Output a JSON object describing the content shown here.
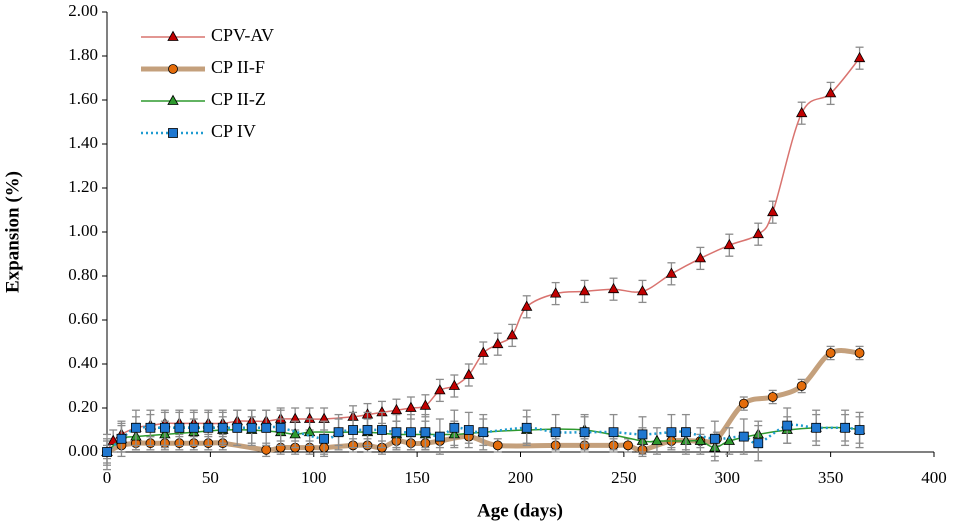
{
  "chart_data": {
    "type": "line",
    "xlabel": "Age (days)",
    "ylabel": "Expansion (%)",
    "xlim": [
      0,
      400
    ],
    "xticks": [
      0,
      50,
      100,
      150,
      200,
      250,
      300,
      350,
      400
    ],
    "ylim": [
      0,
      2
    ],
    "yticks": [
      {
        "value": 0,
        "label": "0.00"
      },
      {
        "value": 0.2,
        "label": "0.20"
      },
      {
        "value": 0.4,
        "label": "0.40"
      },
      {
        "value": 0.6,
        "label": "0.60"
      },
      {
        "value": 0.8,
        "label": "0.80"
      },
      {
        "value": 1,
        "label": "1.00"
      },
      {
        "value": 1.2,
        "label": "1.20"
      },
      {
        "value": 1.4,
        "label": "1.40"
      },
      {
        "value": 1.6,
        "label": "1.60"
      },
      {
        "value": 1.8,
        "label": "1.80"
      },
      {
        "value": 2,
        "label": "2.00"
      }
    ],
    "legend": "upper left",
    "series": [
      {
        "name": "CPV-AV",
        "color": "#c00000",
        "line_color": "#d9736f",
        "line_width": 1.5,
        "dash": "none",
        "marker": "triangle",
        "error": 0.05,
        "x": [
          0,
          3,
          7,
          14,
          21,
          28,
          35,
          42,
          49,
          56,
          63,
          70,
          77,
          84,
          91,
          98,
          105,
          119,
          126,
          133,
          140,
          147,
          154,
          161,
          168,
          175,
          182,
          189,
          196,
          203,
          217,
          231,
          245,
          259,
          273,
          287,
          301,
          315,
          322,
          336,
          350,
          364
        ],
        "values": [
          0,
          0.05,
          0.08,
          0.11,
          0.12,
          0.13,
          0.13,
          0.13,
          0.13,
          0.13,
          0.14,
          0.14,
          0.14,
          0.15,
          0.15,
          0.15,
          0.15,
          0.16,
          0.17,
          0.18,
          0.19,
          0.2,
          0.21,
          0.28,
          0.3,
          0.35,
          0.45,
          0.49,
          0.53,
          0.66,
          0.72,
          0.73,
          0.74,
          0.73,
          0.81,
          0.88,
          0.94,
          0.99,
          1.09,
          1.54,
          1.63,
          1.79
        ]
      },
      {
        "name": "CP II-F",
        "color": "#e46c0a",
        "line_color": "#c4a07c",
        "line_width": 5,
        "dash": "none",
        "marker": "circle",
        "error": 0.03,
        "x": [
          0,
          7,
          14,
          21,
          28,
          35,
          42,
          49,
          56,
          77,
          84,
          91,
          98,
          105,
          119,
          126,
          133,
          140,
          147,
          154,
          161,
          175,
          189,
          217,
          231,
          245,
          252,
          259,
          273,
          287,
          295,
          308,
          322,
          336,
          350,
          364
        ],
        "values": [
          0,
          0.03,
          0.04,
          0.04,
          0.04,
          0.04,
          0.04,
          0.04,
          0.04,
          0.01,
          0.02,
          0.02,
          0.02,
          0.02,
          0.03,
          0.03,
          0.02,
          0.05,
          0.04,
          0.04,
          0.05,
          0.07,
          0.03,
          0.03,
          0.03,
          0.03,
          0.03,
          0.01,
          0.05,
          0.05,
          0.06,
          0.22,
          0.25,
          0.3,
          0.45,
          0.45
        ]
      },
      {
        "name": "CP II-Z",
        "color": "#2e9a2e",
        "line_color": "#2e9a2e",
        "line_width": 1.5,
        "dash": "none",
        "marker": "triangle",
        "error": 0.06,
        "x": [
          0,
          7,
          14,
          28,
          42,
          56,
          70,
          84,
          91,
          98,
          112,
          126,
          140,
          154,
          168,
          182,
          203,
          231,
          259,
          266,
          280,
          287,
          294,
          301,
          315,
          329,
          343,
          357,
          364
        ],
        "values": [
          0,
          0.06,
          0.07,
          0.08,
          0.09,
          0.1,
          0.1,
          0.09,
          0.08,
          0.09,
          0.09,
          0.09,
          0.08,
          0.08,
          0.08,
          0.09,
          0.1,
          0.1,
          0.05,
          0.05,
          0.05,
          0.05,
          0.02,
          0.05,
          0.08,
          0.1,
          0.11,
          0.11,
          0.1
        ]
      },
      {
        "name": "CP IV",
        "color": "#1f77d0",
        "line_color": "#1f9bd0",
        "line_width": 2.5,
        "dash": "2,3",
        "marker": "square",
        "error": 0.08,
        "x": [
          0,
          7,
          14,
          21,
          28,
          35,
          42,
          49,
          56,
          63,
          70,
          77,
          84,
          105,
          112,
          119,
          126,
          133,
          140,
          147,
          154,
          161,
          168,
          175,
          182,
          203,
          217,
          231,
          245,
          259,
          273,
          280,
          294,
          308,
          315,
          329,
          343,
          357,
          364
        ],
        "values": [
          0,
          0.06,
          0.11,
          0.11,
          0.11,
          0.11,
          0.11,
          0.11,
          0.11,
          0.11,
          0.11,
          0.11,
          0.11,
          0.06,
          0.09,
          0.1,
          0.1,
          0.1,
          0.09,
          0.09,
          0.09,
          0.07,
          0.11,
          0.1,
          0.09,
          0.11,
          0.09,
          0.09,
          0.09,
          0.08,
          0.09,
          0.09,
          0.06,
          0.07,
          0.04,
          0.12,
          0.11,
          0.11,
          0.1
        ]
      }
    ]
  }
}
